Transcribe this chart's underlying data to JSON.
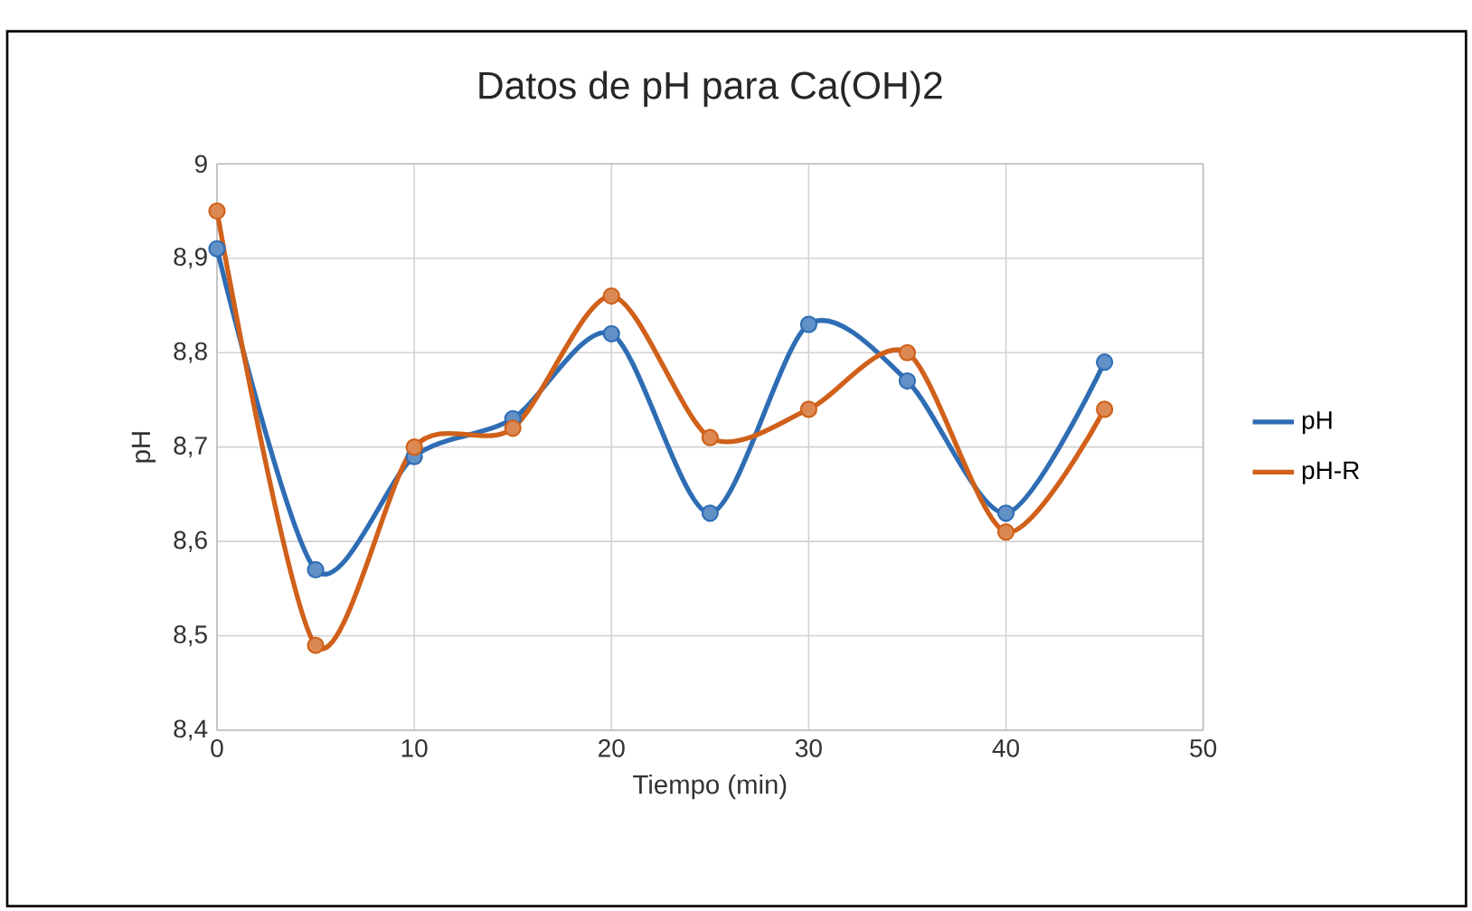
{
  "chart_data": {
    "type": "line",
    "title": "Datos de pH para Ca(OH)2",
    "xlabel": "Tiempo (min)",
    "ylabel": "pH",
    "x": [
      0,
      5,
      10,
      15,
      20,
      25,
      30,
      35,
      40,
      45
    ],
    "series": [
      {
        "name": "pH",
        "color": "#2e6db4",
        "values": [
          8.91,
          8.57,
          8.69,
          8.73,
          8.82,
          8.63,
          8.83,
          8.77,
          8.63,
          8.79
        ]
      },
      {
        "name": "pH-R",
        "color": "#d0601a",
        "values": [
          8.95,
          8.49,
          8.7,
          8.72,
          8.86,
          8.71,
          8.74,
          8.8,
          8.61,
          8.74
        ]
      }
    ],
    "xlim": [
      0,
      50
    ],
    "xticks": [
      0,
      10,
      20,
      30,
      40,
      50
    ],
    "ylim": [
      8.4,
      9
    ],
    "yticks": [
      {
        "value": 8.4,
        "label": "8,4"
      },
      {
        "value": 8.5,
        "label": "8,5"
      },
      {
        "value": 8.6,
        "label": "8,6"
      },
      {
        "value": 8.7,
        "label": "8,7"
      },
      {
        "value": 8.8,
        "label": "8,8"
      },
      {
        "value": 8.9,
        "label": "8,9"
      },
      9
    ],
    "grid": true,
    "legend": "right",
    "marker": "circle",
    "line_style": "solid"
  }
}
